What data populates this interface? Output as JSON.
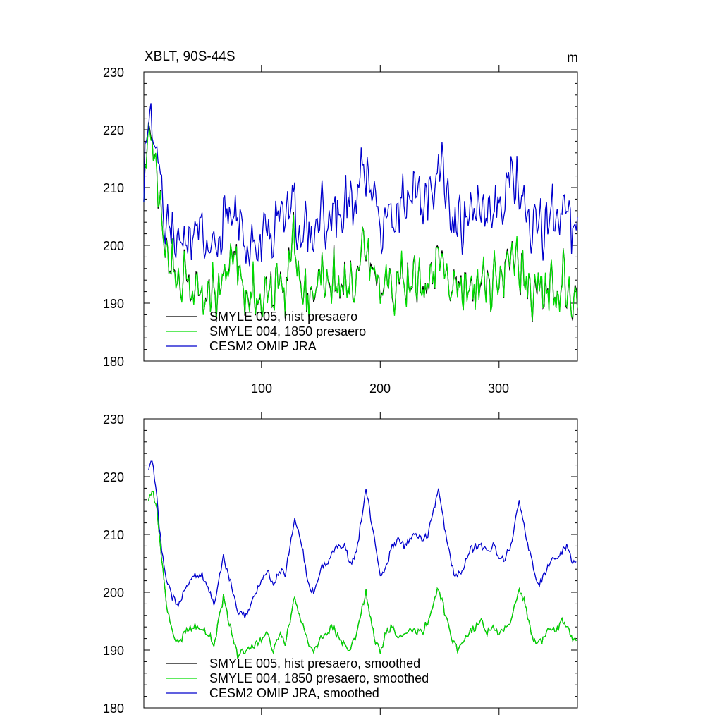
{
  "chart_data": [
    {
      "type": "line",
      "title": "XBLT, 90S-44S",
      "units": "m",
      "xlim": [
        1,
        366
      ],
      "ylim": [
        180,
        230
      ],
      "x_major_ticks": [
        100,
        200,
        300
      ],
      "x_tick_labels": [
        "100",
        "200",
        "300"
      ],
      "y_major_ticks": [
        180,
        190,
        200,
        210,
        220,
        230
      ],
      "y_tick_labels": [
        "180",
        "190",
        "200",
        "210",
        "220",
        "230"
      ],
      "legend_position": "bottom-left",
      "series": [
        {
          "name": "SMYLE 005, hist presaero",
          "color": "#000000"
        },
        {
          "name": "SMYLE 004, 1850 presaero",
          "color": "#00dd00"
        },
        {
          "name": "CESM2 OMIP JRA",
          "color": "#0000cc"
        }
      ],
      "anchors": [
        {
          "name": "SMYLE 004, 1850 presaero",
          "x": [
            1,
            4,
            8,
            12,
            16,
            20,
            26,
            32,
            40,
            50,
            60,
            70,
            76,
            80,
            90,
            100,
            110,
            120,
            126,
            130,
            140,
            150,
            160,
            170,
            180,
            187,
            192,
            200,
            210,
            220,
            230,
            240,
            250,
            256,
            262,
            270,
            280,
            290,
            300,
            310,
            315,
            320,
            330,
            340,
            350,
            360,
            366
          ],
          "y": [
            207,
            218,
            220,
            212,
            205,
            199,
            195,
            193,
            193,
            192,
            192,
            194,
            200,
            195,
            191,
            191,
            192,
            194,
            200,
            195,
            190,
            194,
            193,
            193,
            192,
            200,
            196,
            192,
            192,
            194,
            194,
            193,
            199,
            196,
            191,
            192,
            194,
            193,
            194,
            198,
            199,
            194,
            192,
            193,
            193,
            193,
            193
          ]
        },
        {
          "name": "CESM2 OMIP JRA",
          "x": [
            1,
            4,
            8,
            12,
            16,
            20,
            26,
            32,
            40,
            50,
            60,
            70,
            76,
            80,
            90,
            100,
            110,
            120,
            126,
            130,
            140,
            150,
            160,
            170,
            180,
            187,
            192,
            200,
            210,
            220,
            230,
            240,
            250,
            256,
            262,
            270,
            280,
            290,
            300,
            310,
            315,
            320,
            330,
            340,
            350,
            360,
            366
          ],
          "y": [
            207,
            224,
            222,
            215,
            208,
            203,
            201,
            200,
            201,
            202,
            200,
            205,
            206,
            204,
            199,
            201,
            203,
            205,
            210,
            204,
            201,
            205,
            205,
            207,
            207,
            215,
            209,
            204,
            205,
            207,
            208,
            208,
            214,
            209,
            202,
            205,
            207,
            206,
            206,
            212,
            213,
            208,
            203,
            204,
            206,
            205,
            203
          ]
        }
      ]
    },
    {
      "type": "line",
      "title": "",
      "xlim": [
        1,
        366
      ],
      "ylim": [
        180,
        230
      ],
      "x_major_ticks": [
        100,
        200,
        300
      ],
      "y_major_ticks": [
        180,
        190,
        200,
        210,
        220,
        230
      ],
      "y_tick_labels": [
        "180",
        "190",
        "200",
        "210",
        "220",
        "230"
      ],
      "legend_position": "bottom-left",
      "series": [
        {
          "name": "SMYLE 005, hist presaero, smoothed",
          "color": "#000000"
        },
        {
          "name": "SMYLE 004, 1850 presaero, smoothed",
          "color": "#00dd00"
        },
        {
          "name": "CESM2 OMIP JRA, smoothed",
          "color": "#0000cc"
        }
      ],
      "anchors": [
        {
          "name": "SMYLE 004, 1850 presaero, smoothed",
          "x": [
            5,
            8,
            12,
            16,
            20,
            25,
            30,
            35,
            40,
            45,
            50,
            55,
            60,
            68,
            75,
            80,
            85,
            90,
            95,
            100,
            105,
            110,
            115,
            120,
            128,
            135,
            140,
            145,
            150,
            155,
            160,
            165,
            170,
            175,
            180,
            188,
            195,
            200,
            205,
            210,
            215,
            220,
            225,
            230,
            235,
            240,
            249,
            256,
            262,
            266,
            270,
            275,
            280,
            285,
            290,
            295,
            300,
            305,
            310,
            317,
            323,
            328,
            333,
            338,
            343,
            348,
            353,
            358,
            362,
            365
          ],
          "y": [
            216,
            218,
            214,
            206,
            198,
            193,
            191,
            193,
            194,
            194,
            194,
            193,
            191,
            199,
            193,
            189,
            190,
            190,
            191,
            192,
            193,
            190,
            193,
            191,
            199,
            194,
            191,
            190,
            192,
            193,
            194,
            192,
            191,
            190,
            193,
            200,
            192,
            190,
            193,
            194,
            192,
            193,
            194,
            193,
            193,
            195,
            201,
            195,
            191,
            190,
            192,
            193,
            194,
            195,
            193,
            194,
            193,
            194,
            195,
            201,
            197,
            192,
            191,
            192,
            194,
            193,
            195,
            194,
            192,
            192
          ]
        },
        {
          "name": "CESM2 OMIP JRA, smoothed",
          "x": [
            5,
            8,
            12,
            16,
            20,
            25,
            30,
            35,
            40,
            45,
            50,
            55,
            60,
            68,
            75,
            80,
            85,
            90,
            95,
            100,
            105,
            110,
            115,
            120,
            128,
            135,
            140,
            145,
            150,
            155,
            160,
            165,
            170,
            175,
            180,
            188,
            195,
            200,
            205,
            210,
            215,
            220,
            225,
            230,
            235,
            240,
            249,
            256,
            262,
            266,
            270,
            275,
            280,
            285,
            290,
            295,
            300,
            305,
            310,
            317,
            323,
            328,
            333,
            338,
            343,
            348,
            353,
            358,
            362,
            365
          ],
          "y": [
            221,
            223,
            216,
            207,
            202,
            199,
            198,
            200,
            202,
            203,
            203,
            201,
            198,
            206,
            201,
            196,
            196,
            197,
            200,
            202,
            204,
            201,
            204,
            203,
            213,
            207,
            201,
            200,
            204,
            205,
            207,
            208,
            208,
            205,
            207,
            218,
            209,
            203,
            204,
            208,
            209,
            208,
            209,
            210,
            209,
            210,
            218,
            209,
            203,
            203,
            204,
            207,
            208,
            208,
            207,
            208,
            206,
            206,
            208,
            216,
            209,
            205,
            201,
            203,
            205,
            206,
            207,
            208,
            205,
            205
          ]
        }
      ]
    }
  ]
}
